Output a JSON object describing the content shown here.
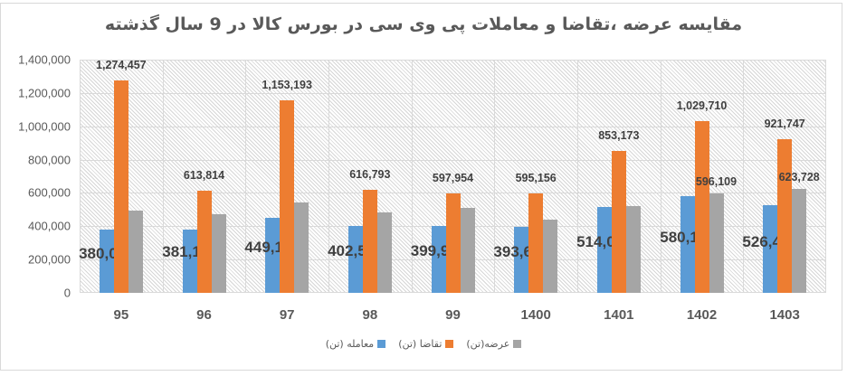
{
  "title": "مقایسه عرضه ،تقاضا و معاملات پی وی سی در بورس کالا در 9 سال گذشته",
  "colors": {
    "trade": "#5b9bd5",
    "demand": "#ed7d31",
    "supply": "#a5a5a5"
  },
  "legend": [
    {
      "key": "trade",
      "label": "معامله (تن)",
      "color": "#5b9bd5"
    },
    {
      "key": "demand",
      "label": "تقاضا (تن)",
      "color": "#ed7d31"
    },
    {
      "key": "supply",
      "label": "عرضه(تن)",
      "color": "#a5a5a5"
    }
  ],
  "y_ticks": [
    "0",
    "200,000",
    "400,000",
    "600,000",
    "800,000",
    "1,000,000",
    "1,200,000",
    "1,400,000"
  ],
  "chart_data": {
    "type": "bar",
    "title": "مقایسه عرضه ،تقاضا و معاملات پی وی سی در بورس کالا در 9 سال گذشته",
    "xlabel": "",
    "ylabel": "",
    "ylim": [
      0,
      1400000
    ],
    "grid": true,
    "legend_position": "bottom",
    "categories": [
      "95",
      "96",
      "97",
      "98",
      "99",
      "1400",
      "1401",
      "1402",
      "1403"
    ],
    "series": [
      {
        "name": "معامله (تن)",
        "color": "#5b9bd5",
        "values": [
          380032,
          381115,
          449126,
          402570,
          399992,
          393652,
          514013,
          580114,
          526439
        ],
        "labels": [
          "380,032",
          "381,115",
          "449,126",
          "402,570",
          "399,992",
          "393,652",
          "514,013",
          "580,114",
          "526,439"
        ]
      },
      {
        "name": "تقاضا (تن)",
        "color": "#ed7d31",
        "values": [
          1274457,
          613814,
          1153193,
          616793,
          597954,
          595156,
          853173,
          1029710,
          921747
        ],
        "labels": [
          "1,274,457",
          "613,814",
          "1,153,193",
          "616,793",
          "597,954",
          "595,156",
          "853,173",
          "1,029,710",
          "921,747"
        ]
      },
      {
        "name": "عرضه(تن)",
        "color": "#a5a5a5",
        "values": [
          494000,
          472000,
          543000,
          483000,
          510000,
          440000,
          521000,
          596109,
          623728
        ],
        "labels": [
          "",
          "",
          "",
          "",
          "",
          "",
          "",
          "596,109",
          "623,728"
        ]
      }
    ]
  }
}
